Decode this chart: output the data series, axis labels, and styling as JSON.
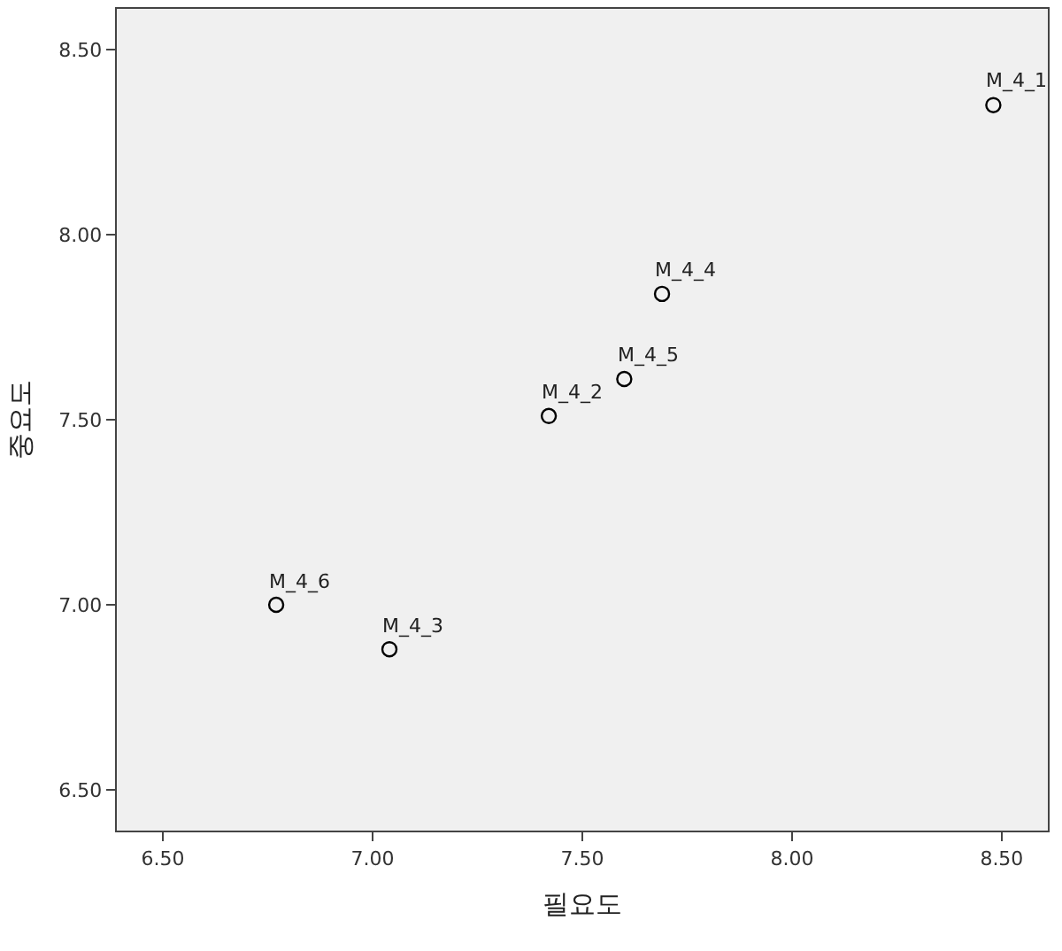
{
  "chart_data": {
    "type": "scatter",
    "xlabel": "필요도",
    "ylabel": "중요도",
    "series": [
      {
        "color": "#000000",
        "x": [
          8.48,
          7.42,
          7.04,
          7.69,
          7.6,
          6.77
        ],
        "values": [
          8.35,
          7.51,
          6.88,
          7.84,
          7.61,
          7.0
        ]
      }
    ],
    "annotations": [
      {
        "text": "M_4_1",
        "x": 8.48,
        "y": 8.35
      },
      {
        "text": "M_4_2",
        "x": 7.42,
        "y": 7.51
      },
      {
        "text": "M_4_3",
        "x": 7.04,
        "y": 6.88
      },
      {
        "text": "M_4_4",
        "x": 7.69,
        "y": 7.84
      },
      {
        "text": "M_4_5",
        "x": 7.6,
        "y": 7.61
      },
      {
        "text": "M_4_6",
        "x": 6.77,
        "y": 7.0
      }
    ],
    "xlim": [
      6.39,
      8.61
    ],
    "ylim": [
      6.39,
      8.61
    ],
    "xticks": [
      {
        "value": 6.5,
        "label": "6.50"
      },
      {
        "value": 7.0,
        "label": "7.00"
      },
      {
        "value": 7.5,
        "label": "7.50"
      },
      {
        "value": 8.0,
        "label": "8.00"
      },
      {
        "value": 8.5,
        "label": "8.50"
      }
    ],
    "yticks": [
      {
        "value": 6.5,
        "label": "6.50"
      },
      {
        "value": 7.0,
        "label": "7.00"
      },
      {
        "value": 7.5,
        "label": "7.50"
      },
      {
        "value": 8.0,
        "label": "8.00"
      },
      {
        "value": 8.5,
        "label": "8.50"
      }
    ],
    "marker": "circle"
  }
}
